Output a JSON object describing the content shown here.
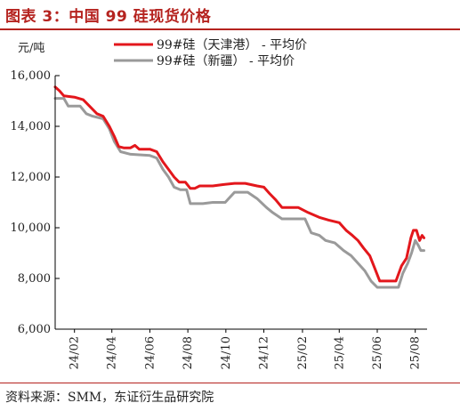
{
  "figure": {
    "title": "图表 3：中国 99 硅现货价格",
    "source": "资料来源：SMM，东证衍生品研究院"
  },
  "chart_data": {
    "type": "line",
    "ylabel": "元/吨",
    "ylim": [
      6000,
      16000
    ],
    "yticks": [
      6000,
      8000,
      10000,
      12000,
      14000,
      16000
    ],
    "ytick_labels": [
      "6,000",
      "8,000",
      "10,000",
      "12,000",
      "14,000",
      "16,000"
    ],
    "xlim": [
      "2024-01-01",
      "2025-08-20"
    ],
    "xticks": [
      "2024-02-01",
      "2024-04-01",
      "2024-06-01",
      "2024-08-01",
      "2024-10-01",
      "2024-12-01",
      "2025-02-01",
      "2025-04-01",
      "2025-06-01",
      "2025-08-01"
    ],
    "xtick_labels": [
      "24/02",
      "24/04",
      "24/06",
      "24/08",
      "24/10",
      "24/12",
      "25/02",
      "25/04",
      "25/06",
      "25/08"
    ],
    "legend_position": "top",
    "series": [
      {
        "name": "99#硅（天津港）  - 平均价",
        "color": "#e3171c",
        "points": [
          [
            "2024-01-01",
            15550
          ],
          [
            "2024-01-08",
            15400
          ],
          [
            "2024-01-15",
            15200
          ],
          [
            "2024-02-01",
            15150
          ],
          [
            "2024-02-15",
            15050
          ],
          [
            "2024-02-25",
            14800
          ],
          [
            "2024-03-08",
            14500
          ],
          [
            "2024-03-18",
            14400
          ],
          [
            "2024-03-28",
            14000
          ],
          [
            "2024-04-05",
            13600
          ],
          [
            "2024-04-12",
            13200
          ],
          [
            "2024-04-20",
            13150
          ],
          [
            "2024-05-01",
            13150
          ],
          [
            "2024-05-08",
            13250
          ],
          [
            "2024-05-15",
            13100
          ],
          [
            "2024-06-01",
            13100
          ],
          [
            "2024-06-12",
            13000
          ],
          [
            "2024-06-22",
            12600
          ],
          [
            "2024-07-01",
            12300
          ],
          [
            "2024-07-10",
            12000
          ],
          [
            "2024-07-18",
            11800
          ],
          [
            "2024-07-28",
            11800
          ],
          [
            "2024-08-05",
            11550
          ],
          [
            "2024-08-12",
            11550
          ],
          [
            "2024-08-20",
            11650
          ],
          [
            "2024-09-10",
            11650
          ],
          [
            "2024-09-25",
            11700
          ],
          [
            "2024-10-15",
            11750
          ],
          [
            "2024-11-01",
            11750
          ],
          [
            "2024-11-20",
            11650
          ],
          [
            "2024-12-01",
            11600
          ],
          [
            "2024-12-10",
            11350
          ],
          [
            "2024-12-20",
            11100
          ],
          [
            "2024-12-30",
            10800
          ],
          [
            "2025-01-25",
            10800
          ],
          [
            "2025-02-10",
            10600
          ],
          [
            "2025-03-01",
            10400
          ],
          [
            "2025-03-15",
            10300
          ],
          [
            "2025-04-01",
            10200
          ],
          [
            "2025-04-12",
            9900
          ],
          [
            "2025-04-22",
            9700
          ],
          [
            "2025-05-01",
            9500
          ],
          [
            "2025-05-10",
            9200
          ],
          [
            "2025-05-20",
            8900
          ],
          [
            "2025-05-28",
            8400
          ],
          [
            "2025-06-05",
            7900
          ],
          [
            "2025-06-15",
            7900
          ],
          [
            "2025-07-01",
            7900
          ],
          [
            "2025-07-10",
            8500
          ],
          [
            "2025-07-18",
            8800
          ],
          [
            "2025-07-25",
            9600
          ],
          [
            "2025-07-29",
            9900
          ],
          [
            "2025-08-03",
            9900
          ],
          [
            "2025-08-08",
            9500
          ],
          [
            "2025-08-12",
            9700
          ],
          [
            "2025-08-15",
            9600
          ]
        ]
      },
      {
        "name": "99#硅（新疆）  - 平均价",
        "color": "#9a9a9a",
        "points": [
          [
            "2024-01-01",
            15100
          ],
          [
            "2024-01-15",
            15100
          ],
          [
            "2024-01-22",
            14800
          ],
          [
            "2024-02-10",
            14800
          ],
          [
            "2024-02-20",
            14500
          ],
          [
            "2024-03-01",
            14400
          ],
          [
            "2024-03-18",
            14300
          ],
          [
            "2024-03-28",
            13900
          ],
          [
            "2024-04-05",
            13400
          ],
          [
            "2024-04-15",
            13000
          ],
          [
            "2024-05-01",
            12900
          ],
          [
            "2024-06-01",
            12850
          ],
          [
            "2024-06-12",
            12750
          ],
          [
            "2024-06-22",
            12300
          ],
          [
            "2024-07-01",
            12000
          ],
          [
            "2024-07-10",
            11600
          ],
          [
            "2024-07-20",
            11500
          ],
          [
            "2024-07-30",
            11500
          ],
          [
            "2024-08-05",
            10950
          ],
          [
            "2024-08-25",
            10950
          ],
          [
            "2024-09-10",
            11000
          ],
          [
            "2024-09-30",
            11000
          ],
          [
            "2024-10-15",
            11400
          ],
          [
            "2024-11-05",
            11400
          ],
          [
            "2024-11-20",
            11150
          ],
          [
            "2024-12-05",
            10800
          ],
          [
            "2024-12-15",
            10600
          ],
          [
            "2024-12-30",
            10350
          ],
          [
            "2025-01-25",
            10350
          ],
          [
            "2025-02-05",
            10350
          ],
          [
            "2025-02-15",
            9800
          ],
          [
            "2025-02-28",
            9700
          ],
          [
            "2025-03-10",
            9500
          ],
          [
            "2025-03-25",
            9400
          ],
          [
            "2025-04-08",
            9100
          ],
          [
            "2025-04-20",
            8900
          ],
          [
            "2025-05-01",
            8600
          ],
          [
            "2025-05-12",
            8300
          ],
          [
            "2025-05-22",
            7900
          ],
          [
            "2025-06-01",
            7650
          ],
          [
            "2025-06-20",
            7650
          ],
          [
            "2025-07-05",
            7650
          ],
          [
            "2025-07-12",
            8200
          ],
          [
            "2025-07-20",
            8600
          ],
          [
            "2025-07-26",
            9000
          ],
          [
            "2025-08-01",
            9500
          ],
          [
            "2025-08-06",
            9300
          ],
          [
            "2025-08-10",
            9100
          ],
          [
            "2025-08-15",
            9100
          ]
        ]
      }
    ]
  }
}
